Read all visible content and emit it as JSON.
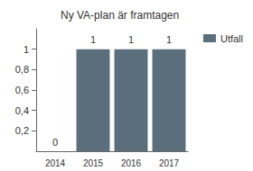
{
  "chart_data": {
    "type": "bar",
    "title": "Ny VA-plan är framtagen",
    "categories": [
      "2014",
      "2015",
      "2016",
      "2017"
    ],
    "series": [
      {
        "name": "Utfall",
        "color": "#5b6e7c",
        "values": [
          0,
          1,
          1,
          1
        ]
      }
    ],
    "ylim": [
      0,
      1.2
    ],
    "yticks": [
      {
        "value": 0.2,
        "label": "0,2"
      },
      {
        "value": 0.4,
        "label": "0,4"
      },
      {
        "value": 0.6,
        "label": "0,6"
      },
      {
        "value": 0.8,
        "label": "0,8"
      },
      1
    ],
    "grid": false,
    "legend": "right",
    "data_labels": true
  }
}
